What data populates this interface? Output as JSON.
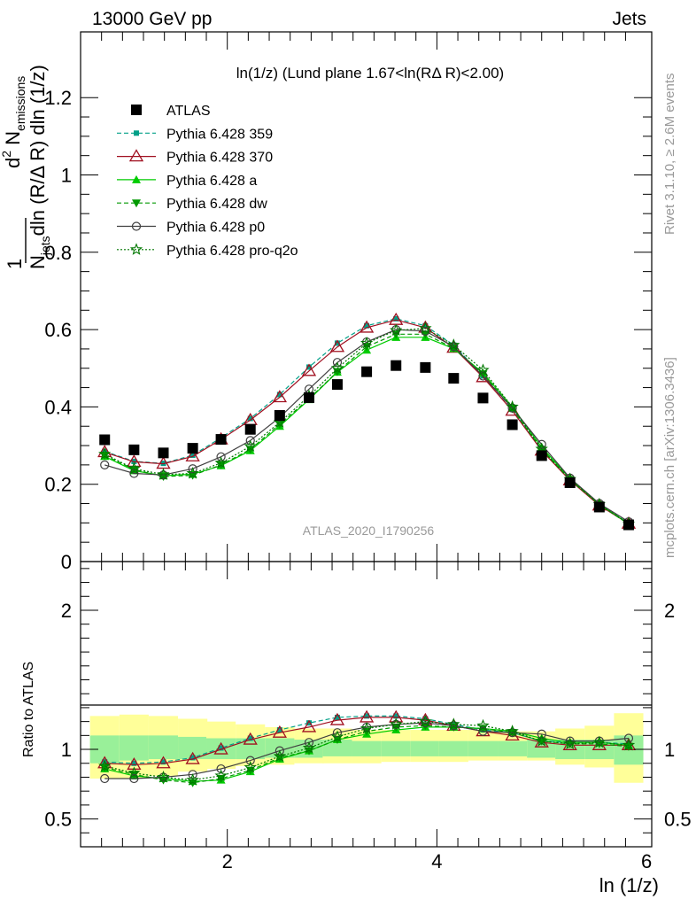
{
  "header": {
    "left": "13000 GeV pp",
    "right": "Jets"
  },
  "plot_title": "ln(1/z) (Lund plane 1.67<ln(RΔ R)<2.00)",
  "watermark": "ATLAS_2020_I1790256",
  "side_labels": {
    "rivet": "Rivet 3.1.10, ≥ 2.6M events",
    "mcplots": "mcplots.cern.ch [arXiv:1306.3436]"
  },
  "chart_data": [
    {
      "type": "line",
      "ylabel": "1/Njets dNemissions/dln(R/ΔR) dln(1/z)",
      "xlabel": "ln (1/z)",
      "xlim": [
        0.6,
        6.05
      ],
      "ylim": [
        0,
        1.37
      ],
      "x_ticks": [
        "2",
        "4",
        "6"
      ],
      "y_ticks": [
        "0",
        "0.2",
        "0.4",
        "0.6",
        "0.8",
        "1",
        "1.2"
      ],
      "x": [
        0.83,
        1.11,
        1.39,
        1.67,
        1.94,
        2.22,
        2.5,
        2.78,
        3.05,
        3.33,
        3.61,
        3.89,
        4.16,
        4.44,
        4.72,
        5.0,
        5.27,
        5.55,
        5.83
      ],
      "series": [
        {
          "name": "ATLAS",
          "color": "#000000",
          "values": [
            0.315,
            0.289,
            0.281,
            0.293,
            0.316,
            0.342,
            0.378,
            0.424,
            0.458,
            0.491,
            0.507,
            0.502,
            0.474,
            0.423,
            0.354,
            0.274,
            0.204,
            0.141,
            0.095
          ]
        },
        {
          "name": "Pythia 6.428 359",
          "color": "#00a088",
          "values": [
            0.285,
            0.259,
            0.254,
            0.275,
            0.32,
            0.37,
            0.432,
            0.503,
            0.565,
            0.61,
            0.628,
            0.61,
            0.56,
            0.48,
            0.395,
            0.29,
            0.214,
            0.148,
            0.099
          ]
        },
        {
          "name": "Pythia 6.428 370",
          "color": "#a01020",
          "values": [
            0.283,
            0.258,
            0.253,
            0.272,
            0.316,
            0.366,
            0.425,
            0.493,
            0.555,
            0.605,
            0.625,
            0.605,
            0.553,
            0.477,
            0.39,
            0.287,
            0.21,
            0.145,
            0.098
          ]
        },
        {
          "name": "Pythia 6.428 a",
          "color": "#00cc00",
          "values": [
            0.272,
            0.235,
            0.222,
            0.226,
            0.248,
            0.287,
            0.35,
            0.419,
            0.49,
            0.547,
            0.58,
            0.58,
            0.551,
            0.488,
            0.4,
            0.296,
            0.215,
            0.148,
            0.098
          ]
        },
        {
          "name": "Pythia 6.428 dw",
          "color": "#009900",
          "values": [
            0.275,
            0.238,
            0.22,
            0.223,
            0.25,
            0.29,
            0.355,
            0.421,
            0.491,
            0.556,
            0.588,
            0.588,
            0.552,
            0.485,
            0.395,
            0.29,
            0.212,
            0.147,
            0.097
          ]
        },
        {
          "name": "Pythia 6.428 p0",
          "color": "#404040",
          "values": [
            0.25,
            0.228,
            0.224,
            0.24,
            0.271,
            0.313,
            0.373,
            0.446,
            0.515,
            0.568,
            0.6,
            0.596,
            0.556,
            0.48,
            0.397,
            0.303,
            0.216,
            0.15,
            0.103
          ]
        },
        {
          "name": "Pythia 6.428 pro-q2o",
          "color": "#007700",
          "values": [
            0.278,
            0.24,
            0.225,
            0.228,
            0.255,
            0.298,
            0.36,
            0.428,
            0.5,
            0.565,
            0.598,
            0.603,
            0.56,
            0.495,
            0.4,
            0.291,
            0.213,
            0.148,
            0.098
          ]
        }
      ]
    },
    {
      "type": "line",
      "ylabel": "Ratio to ATLAS",
      "xlabel": "ln (1/z)",
      "xlim": [
        0.6,
        6.05
      ],
      "ylim": [
        0.3,
        2.35
      ],
      "y_ticks": [
        "0.5",
        "1",
        "2"
      ],
      "band_inner": [
        [
          0.9,
          1.1
        ],
        [
          0.92,
          1.1
        ],
        [
          0.93,
          1.1
        ],
        [
          0.93,
          1.09
        ],
        [
          0.93,
          1.08
        ],
        [
          0.93,
          1.08
        ],
        [
          0.94,
          1.08
        ],
        [
          0.94,
          1.07
        ],
        [
          0.95,
          1.07
        ],
        [
          0.95,
          1.06
        ],
        [
          0.95,
          1.06
        ],
        [
          0.95,
          1.06
        ],
        [
          0.95,
          1.06
        ],
        [
          0.95,
          1.06
        ],
        [
          0.95,
          1.06
        ],
        [
          0.94,
          1.07
        ],
        [
          0.93,
          1.07
        ],
        [
          0.93,
          1.07
        ],
        [
          0.89,
          1.1
        ]
      ],
      "band_outer": [
        [
          0.79,
          1.24
        ],
        [
          0.79,
          1.25
        ],
        [
          0.81,
          1.24
        ],
        [
          0.84,
          1.22
        ],
        [
          0.86,
          1.2
        ],
        [
          0.88,
          1.18
        ],
        [
          0.89,
          1.16
        ],
        [
          0.9,
          1.15
        ],
        [
          0.9,
          1.15
        ],
        [
          0.9,
          1.14
        ],
        [
          0.91,
          1.14
        ],
        [
          0.91,
          1.14
        ],
        [
          0.91,
          1.14
        ],
        [
          0.92,
          1.14
        ],
        [
          0.92,
          1.13
        ],
        [
          0.92,
          1.13
        ],
        [
          0.89,
          1.15
        ],
        [
          0.87,
          1.17
        ],
        [
          0.76,
          1.26
        ]
      ],
      "series": [
        {
          "name": "Pythia 6.428 359",
          "color": "#00a088",
          "values": [
            0.91,
            0.9,
            0.91,
            0.94,
            1.01,
            1.08,
            1.14,
            1.19,
            1.23,
            1.24,
            1.24,
            1.22,
            1.18,
            1.14,
            1.12,
            1.06,
            1.05,
            1.05,
            1.04
          ]
        },
        {
          "name": "Pythia 6.428 370",
          "color": "#a01020",
          "values": [
            0.9,
            0.89,
            0.9,
            0.93,
            1.0,
            1.07,
            1.12,
            1.16,
            1.21,
            1.23,
            1.23,
            1.21,
            1.17,
            1.13,
            1.1,
            1.05,
            1.03,
            1.03,
            1.03
          ]
        },
        {
          "name": "Pythia 6.428 a",
          "color": "#00cc00",
          "values": [
            0.86,
            0.81,
            0.79,
            0.77,
            0.78,
            0.84,
            0.93,
            0.99,
            1.07,
            1.11,
            1.14,
            1.16,
            1.16,
            1.15,
            1.13,
            1.08,
            1.05,
            1.05,
            1.03
          ]
        },
        {
          "name": "Pythia 6.428 dw",
          "color": "#009900",
          "values": [
            0.87,
            0.82,
            0.78,
            0.76,
            0.79,
            0.85,
            0.94,
            0.99,
            1.07,
            1.13,
            1.16,
            1.17,
            1.16,
            1.15,
            1.12,
            1.06,
            1.04,
            1.04,
            1.02
          ]
        },
        {
          "name": "Pythia 6.428 p0",
          "color": "#404040",
          "values": [
            0.79,
            0.79,
            0.8,
            0.82,
            0.86,
            0.92,
            0.99,
            1.05,
            1.12,
            1.16,
            1.18,
            1.19,
            1.17,
            1.13,
            1.12,
            1.11,
            1.06,
            1.06,
            1.08
          ]
        },
        {
          "name": "Pythia 6.428 pro-q2o",
          "color": "#007700",
          "values": [
            0.88,
            0.83,
            0.8,
            0.78,
            0.81,
            0.87,
            0.95,
            1.01,
            1.09,
            1.15,
            1.18,
            1.2,
            1.18,
            1.17,
            1.13,
            1.06,
            1.04,
            1.05,
            1.03
          ]
        }
      ]
    }
  ]
}
